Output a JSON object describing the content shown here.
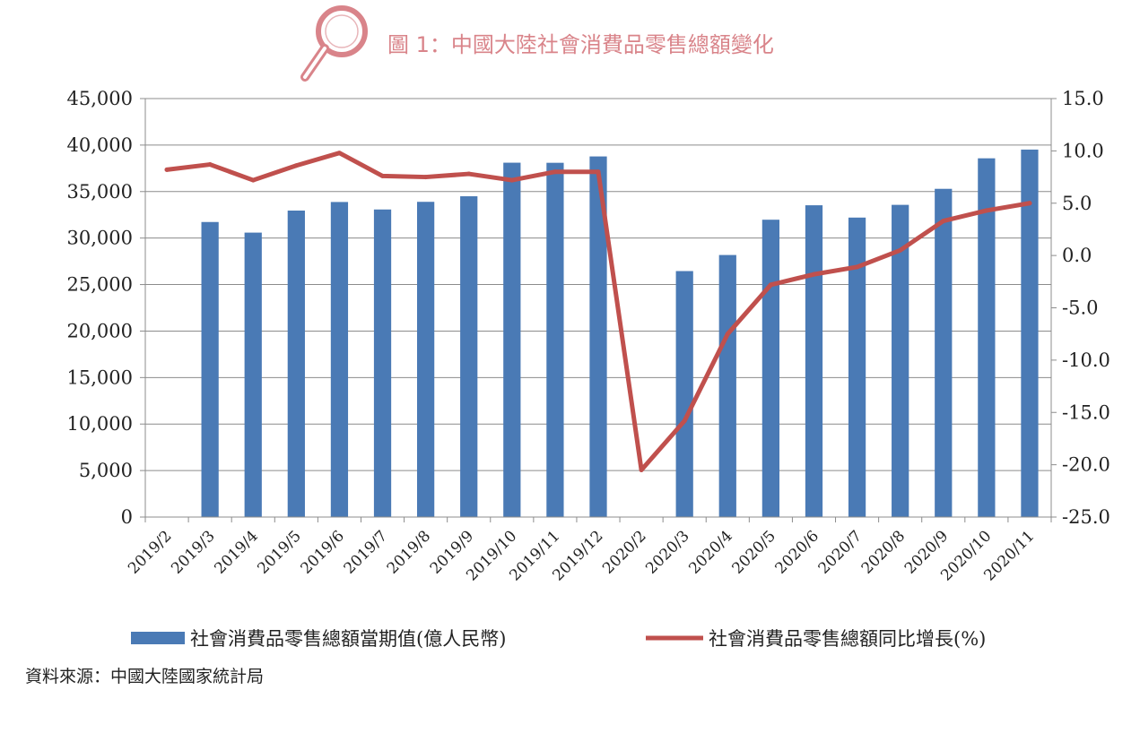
{
  "title": "圖 1：中國大陸社會消費品零售總額變化",
  "source": "資料來源：中國大陸國家統計局",
  "colors": {
    "bar": "#4a7ab5",
    "line": "#c0504d",
    "title": "#d9848a",
    "icon": "#d9848a"
  },
  "icons": {
    "title_icon": "magnifier-icon"
  },
  "chart_data": {
    "type": "bar+line",
    "categories": [
      "2019/2",
      "2019/3",
      "2019/4",
      "2019/5",
      "2019/6",
      "2019/7",
      "2019/8",
      "2019/9",
      "2019/10",
      "2019/11",
      "2019/12",
      "2020/2",
      "2020/3",
      "2020/4",
      "2020/5",
      "2020/6",
      "2020/7",
      "2020/8",
      "2020/9",
      "2020/10",
      "2020/11"
    ],
    "left_axis": {
      "min": 0,
      "max": 45000,
      "step": 5000,
      "ticks": [
        "0",
        "5,000",
        "10,000",
        "15,000",
        "20,000",
        "25,000",
        "30,000",
        "35,000",
        "40,000",
        "45,000"
      ]
    },
    "right_axis": {
      "min": -25,
      "max": 15,
      "step": 5,
      "ticks": [
        "-25.0",
        "-20.0",
        "-15.0",
        "-10.0",
        "-5.0",
        "0.0",
        "5.0",
        "10.0",
        "15.0"
      ]
    },
    "series": [
      {
        "name": "社會消費品零售總額當期值(億人民幣)",
        "type": "bar",
        "axis": "left",
        "values": [
          null,
          31726,
          30586,
          32956,
          33878,
          33073,
          33896,
          34495,
          38104,
          38094,
          38777,
          null,
          26450,
          28178,
          31973,
          33526,
          32203,
          33571,
          35295,
          38576,
          39514
        ]
      },
      {
        "name": "社會消費品零售總額同比增長(%)",
        "type": "line",
        "axis": "right",
        "values": [
          8.2,
          8.7,
          7.2,
          8.6,
          9.8,
          7.6,
          7.5,
          7.8,
          7.2,
          8.0,
          8.0,
          -20.5,
          -15.8,
          -7.5,
          -2.8,
          -1.8,
          -1.1,
          0.5,
          3.3,
          4.3,
          5.0
        ]
      }
    ],
    "legend_position": "bottom",
    "grid": "horizontal"
  }
}
